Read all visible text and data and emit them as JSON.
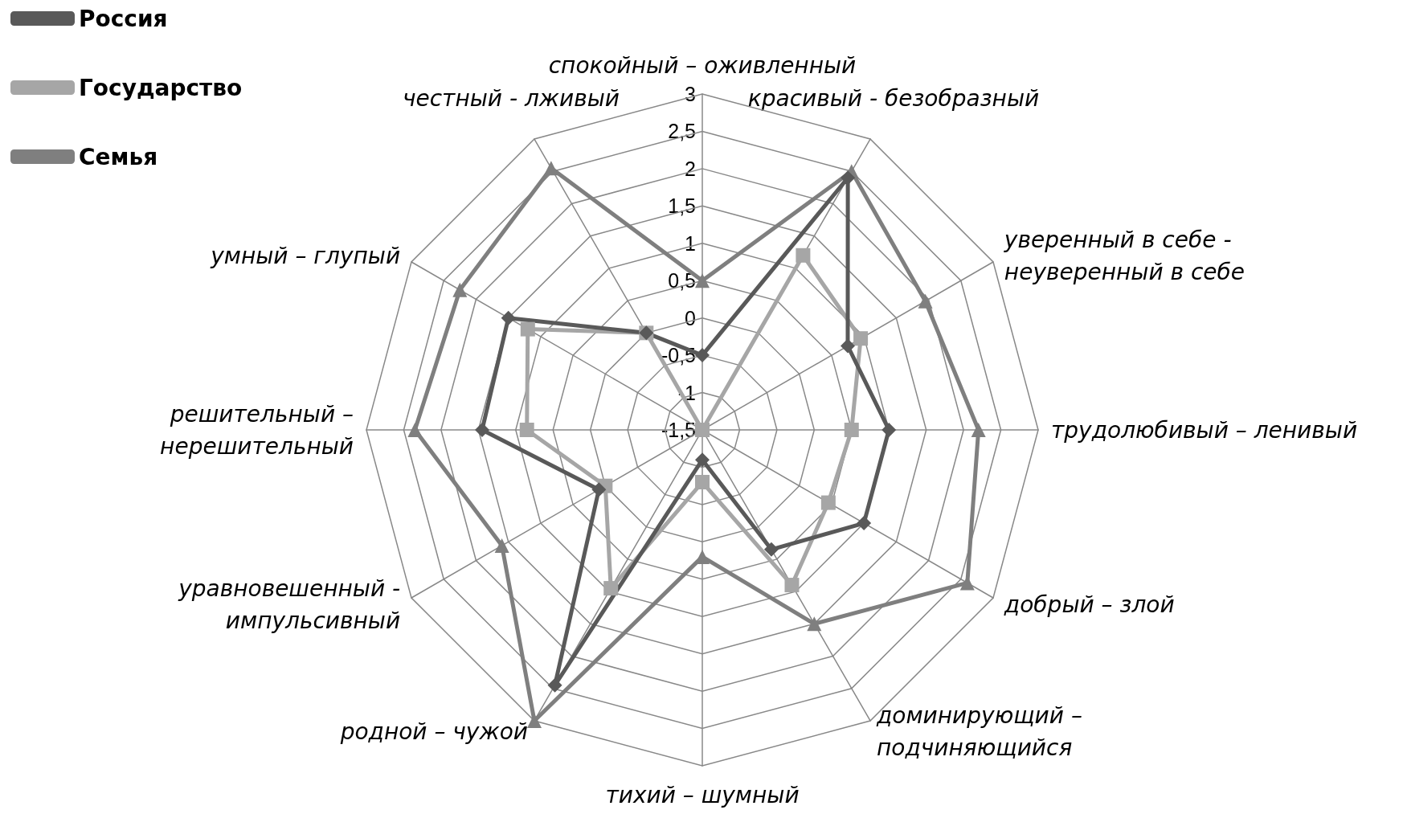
{
  "chart_data": {
    "type": "radar",
    "categories": [
      "спокойный – оживленный",
      "красивый - безобразный",
      "уверенный в себе -\nнеуверенный в себе",
      "трудолюбивый – ленивый",
      "добрый – злой",
      "доминирующий –\nподчиняющийся",
      "тихий – шумный",
      "родной – чужой",
      "уравновешенный -\nимпульсивный",
      "решительный –\nнерешительный",
      "умный – глупый",
      "честный - лживый"
    ],
    "series": [
      {
        "name": "Россия",
        "color": "#595959",
        "marker": "diamond",
        "values": [
          -0.5,
          2.4,
          0.75,
          1,
          1,
          0.35,
          -1.1,
          2.45,
          0.1,
          1.45,
          1.5,
          0
        ]
      },
      {
        "name": "Государство",
        "color": "#a6a6a6",
        "marker": "square",
        "values": [
          -1.5,
          1.2,
          0.95,
          0.5,
          0.45,
          0.9,
          -0.8,
          0.95,
          0,
          0.85,
          1.2,
          0
        ]
      },
      {
        "name": "Семья",
        "color": "#7f7f7f",
        "marker": "triangle",
        "values": [
          0.5,
          2.5,
          1.95,
          2.2,
          2.6,
          1.5,
          0.2,
          3,
          1.6,
          2.35,
          2.25,
          2.55
        ]
      }
    ],
    "ylim": [
      -1.5,
      3
    ],
    "yticks": [
      {
        "value": -1.5,
        "label": "-1,5"
      },
      -1,
      {
        "value": -0.5,
        "label": "-0,5"
      },
      0,
      {
        "value": 0.5,
        "label": "0,5"
      },
      1,
      {
        "value": 1.5,
        "label": "1,5"
      },
      2,
      {
        "value": 2.5,
        "label": "2,5"
      },
      3
    ],
    "legend": "top left"
  }
}
